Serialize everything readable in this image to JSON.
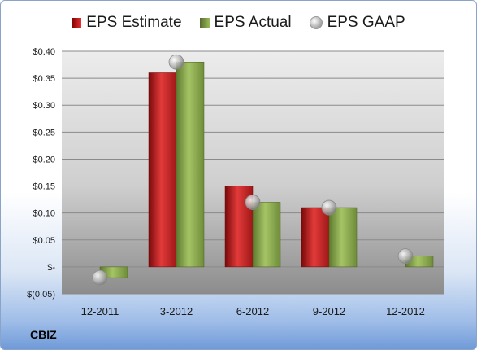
{
  "company": "CBIZ",
  "legend": {
    "estimate": "EPS Estimate",
    "actual": "EPS Actual",
    "gaap": "EPS GAAP"
  },
  "colors": {
    "estimate": "#c0282d",
    "actual": "#8aa84a",
    "gaap": "#b0b0b0"
  },
  "chart_data": {
    "type": "bar",
    "categories": [
      "12-2011",
      "3-2012",
      "6-2012",
      "9-2012",
      "12-2012"
    ],
    "series": [
      {
        "name": "EPS Estimate",
        "values": [
          null,
          0.36,
          0.15,
          0.11,
          null
        ]
      },
      {
        "name": "EPS Actual",
        "values": [
          -0.02,
          0.38,
          0.12,
          0.11,
          0.02
        ]
      },
      {
        "name": "EPS GAAP",
        "values": [
          -0.02,
          0.38,
          0.12,
          0.11,
          0.02
        ],
        "marker": "circle"
      }
    ],
    "y_ticks": [
      0.4,
      0.35,
      0.3,
      0.25,
      0.2,
      0.15,
      0.1,
      0.05,
      0,
      -0.05
    ],
    "y_tick_labels": [
      "$0.40",
      "$0.35",
      "$0.30",
      "$0.25",
      "$0.20",
      "$0.15",
      "$0.10",
      "$0.05",
      "$-",
      "$(0.05)"
    ],
    "ylim": [
      -0.05,
      0.4
    ],
    "grid": true,
    "legend_position": "top"
  }
}
